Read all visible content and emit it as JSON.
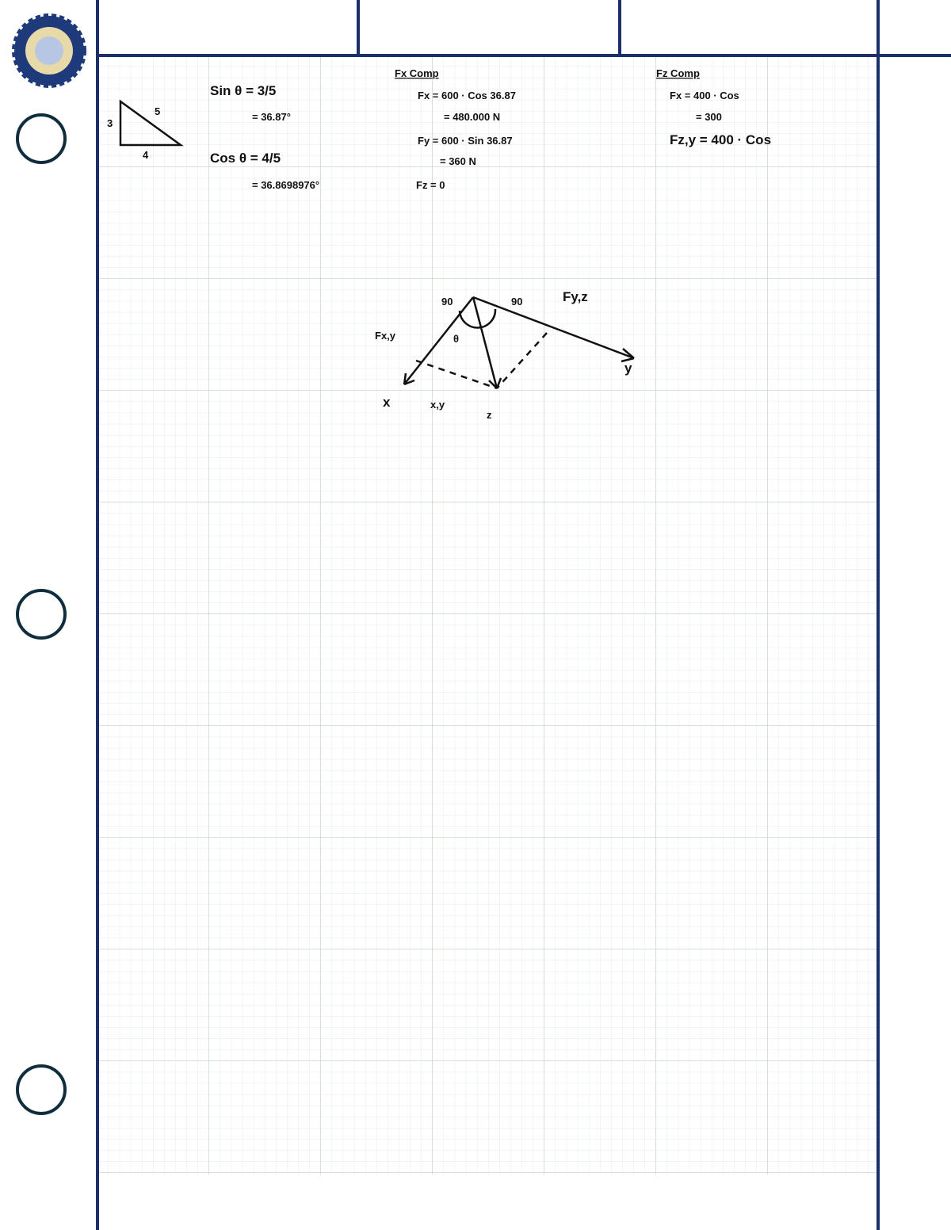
{
  "notes": {
    "triangle": [
      "3",
      "5",
      "4"
    ],
    "trig": [
      "Sin θ = 3/5",
      "= 36.87°",
      "Cos θ = 4/5",
      "= 36.8698976°"
    ],
    "fx_heading": "Fx Comp",
    "fx_lines": [
      "Fx = 600 · Cos 36.87",
      "= 480.000 N",
      "Fy = 600 · Sin 36.87",
      "= 360 N",
      "Fz = 0"
    ],
    "fz_heading": "Fz Comp",
    "fz_lines": [
      "Fx = 400 · Cos",
      "= 300",
      "Fz,y = 400 · Cos"
    ]
  },
  "diagram": {
    "labels": [
      "90",
      "90",
      "Fy,z",
      "Fx,y",
      "θ",
      "x",
      "y",
      "z",
      "x,y"
    ]
  }
}
